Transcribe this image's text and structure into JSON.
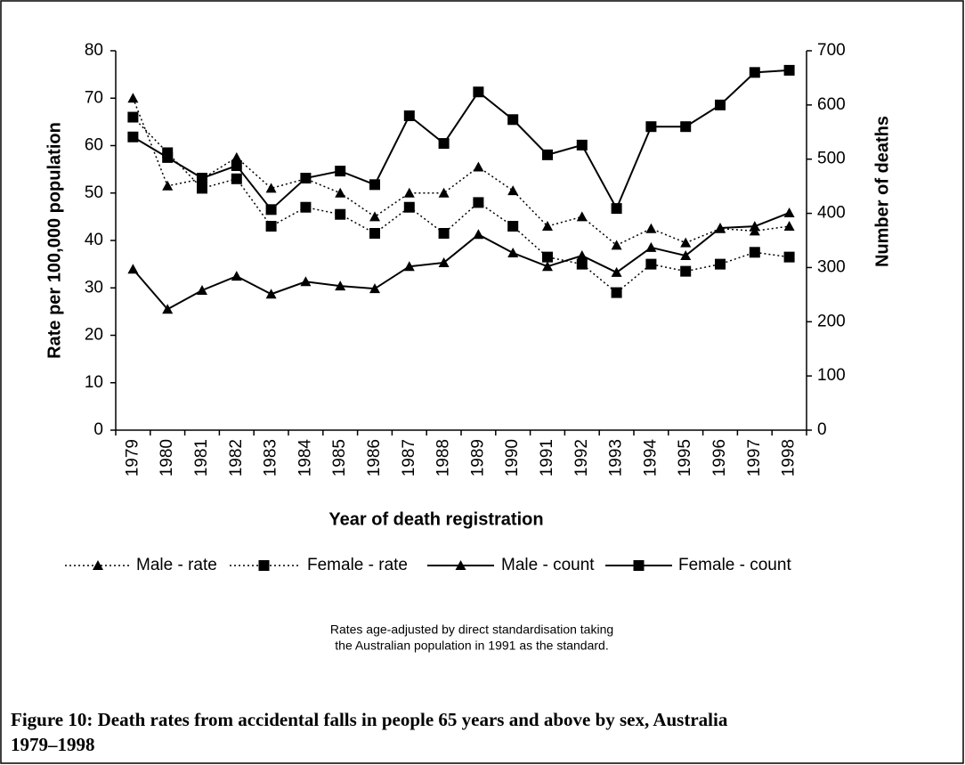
{
  "chart_data": {
    "type": "line",
    "categories": [
      "1979",
      "1980",
      "1981",
      "1982",
      "1983",
      "1984",
      "1985",
      "1986",
      "1987",
      "1988",
      "1989",
      "1990",
      "1991",
      "1992",
      "1993",
      "1994",
      "1995",
      "1996",
      "1997",
      "1998"
    ],
    "series": [
      {
        "name": "Male - rate",
        "color": "#000000",
        "dashed": true,
        "marker": "triangle",
        "values": [
          70,
          51.5,
          53,
          57.5,
          51,
          53,
          50,
          45,
          50,
          50,
          55.5,
          50.5,
          43,
          45,
          39,
          42.5,
          39.5,
          42.5,
          42,
          43
        ]
      },
      {
        "name": "Female - rate",
        "color": "#000000",
        "dashed": true,
        "marker": "square",
        "values": [
          66,
          58.5,
          51,
          53,
          43,
          47,
          45.5,
          41.5,
          47,
          41.5,
          48,
          43,
          36.5,
          35,
          29,
          35,
          33.5,
          35,
          37.5,
          36.5
        ]
      },
      {
        "name": "Male - count",
        "color": "#000000",
        "dashed": false,
        "marker": "triangle",
        "axis": "y2",
        "values": [
          297,
          223,
          258,
          284,
          251,
          274,
          266,
          261,
          302,
          309,
          361,
          327,
          302,
          322,
          291,
          337,
          322,
          373,
          376,
          401
        ]
      },
      {
        "name": "Female - count",
        "color": "#000000",
        "dashed": false,
        "marker": "square",
        "axis": "y2",
        "values": [
          541,
          503,
          465,
          488,
          407,
          465,
          478,
          453,
          580,
          529,
          624,
          573,
          508,
          526,
          409,
          560,
          560,
          600,
          660,
          664
        ]
      }
    ],
    "ylim": [
      0,
      80
    ],
    "yticks": [
      0,
      10,
      20,
      30,
      40,
      50,
      60,
      70,
      80
    ],
    "y2lim": [
      0,
      700
    ],
    "y2ticks": [
      0,
      100,
      200,
      300,
      400,
      500,
      600,
      700
    ],
    "ylabel": "Rate per 100,000 population",
    "y2label": "Number of deaths",
    "xlabel": "Year of death registration",
    "legend": "bottom",
    "note": [
      "Rates age-adjusted by direct standardisation taking",
      "the Australian population in 1991 as the standard."
    ],
    "caption": [
      "Figure 10: Death rates from accidental falls in people 65 years and above by sex, Australia",
      "1979–1998"
    ]
  }
}
